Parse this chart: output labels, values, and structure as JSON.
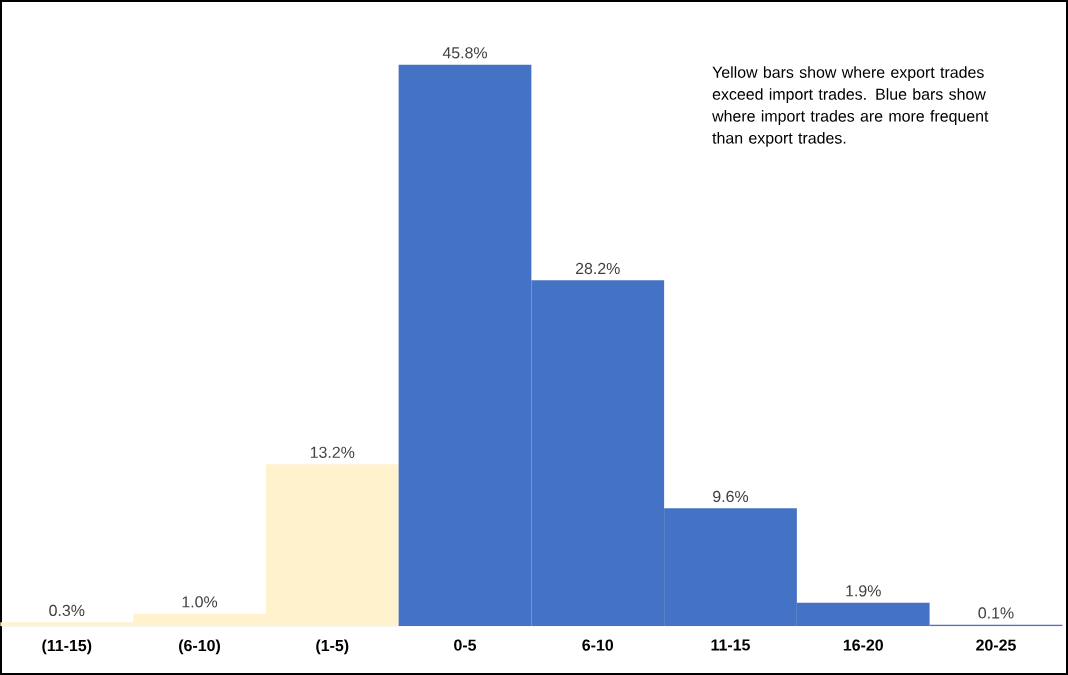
{
  "chart_data": {
    "type": "bar",
    "categories": [
      "(11-15)",
      "(6-10)",
      "(1-5)",
      "0-5",
      "6-10",
      "11-15",
      "16-20",
      "20-25"
    ],
    "values": [
      0.3,
      1.0,
      13.2,
      45.8,
      28.2,
      9.6,
      1.9,
      0.1
    ],
    "value_labels": [
      "0.3%",
      "1.0%",
      "13.2%",
      "45.8%",
      "28.2%",
      "9.6%",
      "1.9%",
      "0.1%"
    ],
    "colors": [
      "#fff2cc",
      "#fff2cc",
      "#fff2cc",
      "#4472c4",
      "#4472c4",
      "#4472c4",
      "#4472c4",
      "#4472c4"
    ],
    "annotations": [
      "Yellow bars show where export trades exceed import trades. Blue bars show where import trades are more frequent than export trades."
    ]
  }
}
